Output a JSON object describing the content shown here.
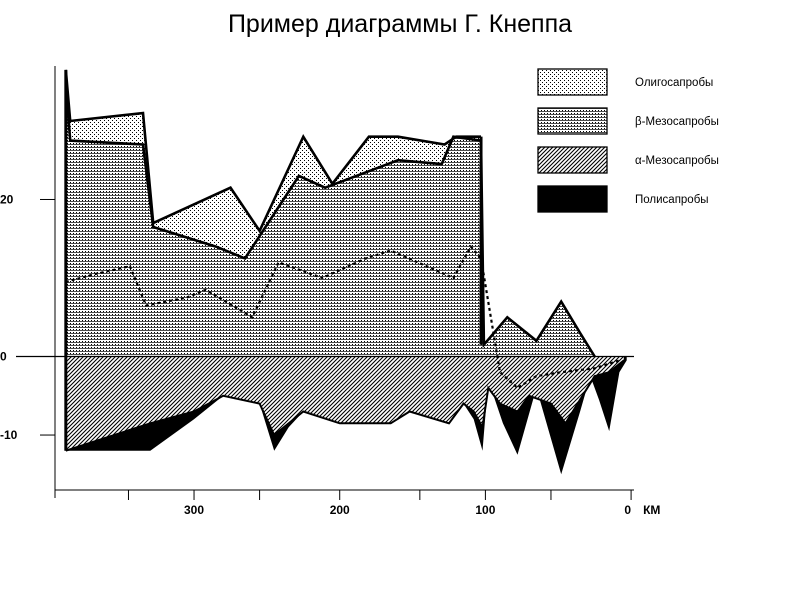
{
  "page": {
    "title": "Пример диаграммы Г. Кнеппа"
  },
  "chart_data": {
    "type": "area",
    "title": "Пример диаграммы Г. Кнеппа",
    "xlabel": "КМ",
    "ylabel": "",
    "x_direction": "reversed",
    "xlim": [
      392,
      -2
    ],
    "ylim": [
      -17,
      37
    ],
    "x_ticks": [
      {
        "value": 300,
        "label": "300"
      },
      {
        "value": 200,
        "label": "200"
      },
      {
        "value": 100,
        "label": "100"
      },
      {
        "value": 0,
        "label": "0"
      }
    ],
    "x_minor_ticks": [
      345,
      255,
      145,
      55
    ],
    "y_ticks": [
      {
        "value": 20,
        "label": "20"
      },
      {
        "value": 0,
        "label": "0"
      },
      {
        "value": -10,
        "label": "-10"
      }
    ],
    "legend_position": "top-right",
    "legend": [
      {
        "name": "Олигосапробы",
        "pattern": "dots"
      },
      {
        "name": "β-Мезосапробы",
        "pattern": "hlines"
      },
      {
        "name": "α-Мезосапробы",
        "pattern": "diag"
      },
      {
        "name": "Полисапробы",
        "pattern": "solid"
      }
    ],
    "series": [
      {
        "name": "Олигосапробы",
        "pattern": "dots",
        "upper": [
          [
            388,
            36.5
          ],
          [
            385,
            30
          ],
          [
            335,
            31
          ],
          [
            328,
            17
          ],
          [
            275,
            21.5
          ],
          [
            255,
            16
          ],
          [
            225,
            28
          ],
          [
            205,
            22
          ],
          [
            180,
            28
          ],
          [
            160,
            28
          ],
          [
            128,
            27
          ],
          [
            120,
            28
          ],
          [
            103,
            28
          ]
        ]
      },
      {
        "name": "β-Мезосапробы",
        "pattern": "hlines",
        "upper": [
          [
            388,
            35
          ],
          [
            385,
            27.5
          ],
          [
            335,
            27
          ],
          [
            328,
            16.5
          ],
          [
            285,
            14
          ],
          [
            265,
            12.5
          ],
          [
            228,
            23
          ],
          [
            210,
            21.5
          ],
          [
            160,
            25
          ],
          [
            130,
            24.5
          ],
          [
            122,
            28
          ],
          [
            103,
            27.5
          ],
          [
            101,
            1.5
          ],
          [
            85,
            5
          ],
          [
            65,
            2
          ],
          [
            48,
            7
          ],
          [
            35,
            3
          ],
          [
            25,
            0
          ]
        ],
        "midline": [
          [
            388,
            9.5
          ],
          [
            368,
            10.5
          ],
          [
            344,
            11.5
          ],
          [
            333,
            6.5
          ],
          [
            305,
            7.5
          ],
          [
            292,
            8.5
          ],
          [
            260,
            5
          ],
          [
            242,
            12
          ],
          [
            212,
            10
          ],
          [
            182,
            12.5
          ],
          [
            165,
            13.5
          ],
          [
            122,
            10
          ],
          [
            110,
            14
          ],
          [
            103,
            12.5
          ],
          [
            90,
            -2
          ],
          [
            78,
            -4
          ],
          [
            65,
            -2.5
          ],
          [
            48,
            -2
          ],
          [
            25,
            -1.5
          ],
          [
            8,
            -0.5
          ]
        ]
      },
      {
        "name": "α-Мезосапробы",
        "pattern": "diag",
        "lower": [
          [
            388,
            -12
          ],
          [
            330,
            -8.5
          ],
          [
            300,
            -7
          ],
          [
            280,
            -5
          ],
          [
            255,
            -6
          ],
          [
            245,
            -10
          ],
          [
            225,
            -7
          ],
          [
            200,
            -8.5
          ],
          [
            165,
            -8.5
          ],
          [
            152,
            -7
          ],
          [
            125,
            -8.5
          ],
          [
            115,
            -6
          ],
          [
            108,
            -7
          ],
          [
            102,
            -9
          ],
          [
            98,
            -4
          ],
          [
            90,
            -6
          ],
          [
            78,
            -7
          ],
          [
            70,
            -5
          ],
          [
            55,
            -6
          ],
          [
            45,
            -8.5
          ],
          [
            35,
            -5.5
          ],
          [
            25,
            -2.5
          ],
          [
            15,
            -2
          ],
          [
            5,
            -0.5
          ]
        ]
      },
      {
        "name": "Полисапробы",
        "pattern": "solid",
        "lower": [
          [
            388,
            -12
          ],
          [
            330,
            -12
          ],
          [
            300,
            -8
          ],
          [
            280,
            -5
          ],
          [
            255,
            -6
          ],
          [
            245,
            -12
          ],
          [
            235,
            -9
          ],
          [
            225,
            -7
          ],
          [
            200,
            -8.5
          ],
          [
            165,
            -8.5
          ],
          [
            152,
            -7
          ],
          [
            125,
            -8.5
          ],
          [
            115,
            -6
          ],
          [
            108,
            -8
          ],
          [
            102,
            -12
          ],
          [
            98,
            -3
          ],
          [
            88,
            -8.5
          ],
          [
            78,
            -12.5
          ],
          [
            65,
            -4
          ],
          [
            48,
            -15
          ],
          [
            35,
            -7
          ],
          [
            28,
            -2.5
          ],
          [
            22,
            -5.5
          ],
          [
            15,
            -9.5
          ],
          [
            8,
            -2
          ],
          [
            3,
            -0.5
          ]
        ]
      }
    ]
  }
}
